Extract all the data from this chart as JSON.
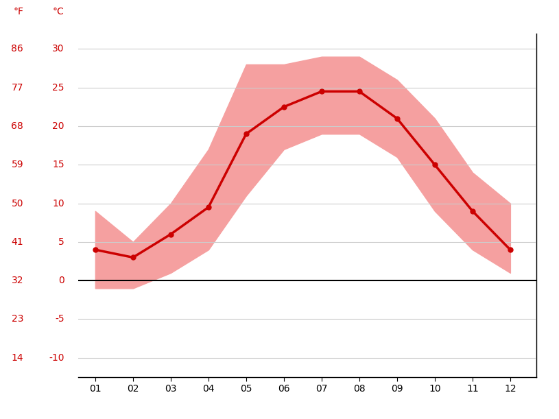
{
  "months": [
    1,
    2,
    3,
    4,
    5,
    6,
    7,
    8,
    9,
    10,
    11,
    12
  ],
  "month_labels": [
    "01",
    "02",
    "03",
    "04",
    "05",
    "06",
    "07",
    "08",
    "09",
    "10",
    "11",
    "12"
  ],
  "mean_temp_c": [
    4.0,
    3.0,
    6.0,
    9.5,
    19.0,
    22.5,
    24.5,
    24.5,
    21.0,
    15.0,
    9.0,
    4.0
  ],
  "max_temp_c": [
    9.0,
    5.0,
    10.0,
    17.0,
    28.0,
    28.0,
    29.0,
    29.0,
    26.0,
    21.0,
    14.0,
    10.0
  ],
  "min_temp_c": [
    -1.0,
    -1.0,
    1.0,
    4.0,
    11.0,
    17.0,
    19.0,
    19.0,
    16.0,
    9.0,
    4.0,
    1.0
  ],
  "yticks_c": [
    -10,
    -5,
    0,
    5,
    10,
    15,
    20,
    25,
    30
  ],
  "yticks_f": [
    14,
    23,
    32,
    41,
    50,
    59,
    68,
    77,
    86
  ],
  "ylim_c": [
    -12.5,
    32
  ],
  "xlim": [
    0.55,
    12.7
  ],
  "line_color": "#cc0000",
  "band_color": "#f5a0a0",
  "zero_line_color": "#000000",
  "grid_color": "#cccccc",
  "label_color": "#cc0000",
  "tick_label_color": "#000000",
  "background_color": "#ffffff",
  "line_width": 2.5,
  "marker_size": 5,
  "spine_color": "#000000"
}
